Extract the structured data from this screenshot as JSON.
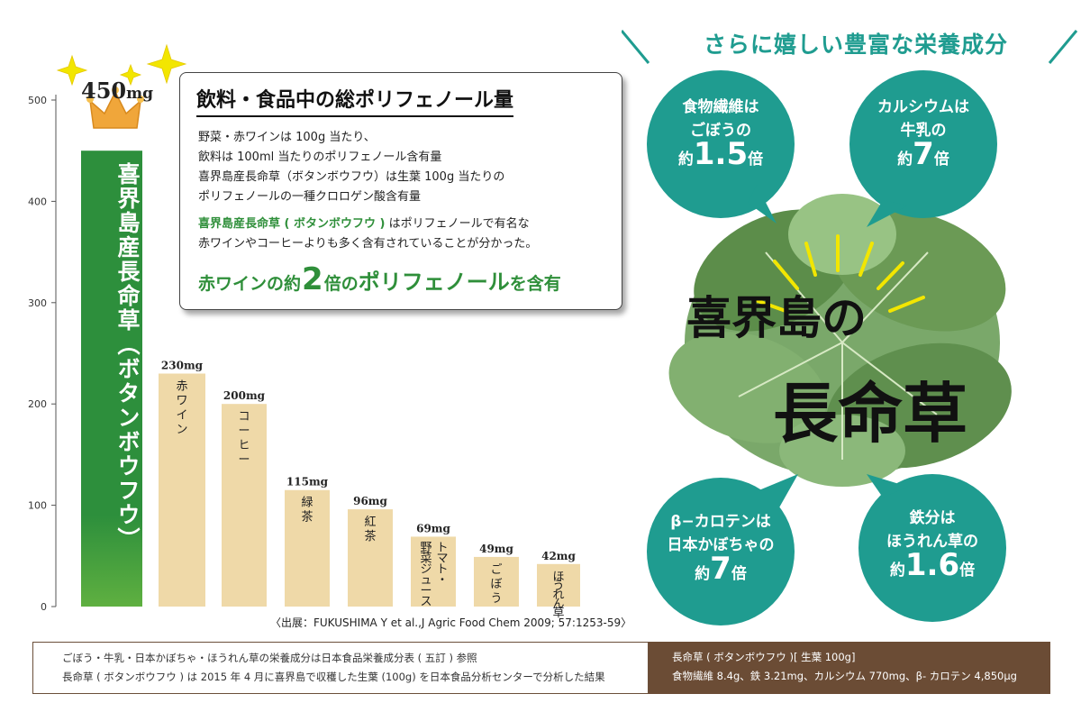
{
  "chart_data": {
    "type": "bar",
    "categories": [
      "喜界島産　長命草（ボタンボウフウ）",
      "赤ワイン",
      "コーヒー",
      "緑茶",
      "紅茶",
      "トマト・野菜ジュース",
      "ごぼう",
      "ほうれん草"
    ],
    "values": [
      450,
      230,
      200,
      115,
      96,
      69,
      49,
      42
    ],
    "value_labels": [
      "450mg",
      "230mg",
      "200mg",
      "115mg",
      "96mg",
      "69mg",
      "49mg",
      "42mg"
    ],
    "bar_names": [
      "",
      "赤ワイン",
      "コーヒー",
      "緑茶",
      "紅茶",
      "トマト・野菜ジュース",
      "ごぼう",
      "ほうれん草"
    ],
    "yticks": [
      0,
      100,
      200,
      300,
      400,
      500
    ],
    "ylim": [
      0,
      500
    ],
    "grid": false,
    "colors": {
      "hero": "#2d8f3c",
      "hero_top": "#5fb040",
      "others": "#efd9a8"
    }
  },
  "hero_bar": {
    "line1": "喜界島産",
    "line2": "長命草（ボタンボウフウ）",
    "peak_value": "450",
    "peak_unit": "mg"
  },
  "info_box": {
    "title": "飲料・食品中の総ポリフェノール量",
    "lines": [
      "野菜・赤ワインは 100g 当たり、",
      "飲料は 100ml 当たりのポリフェノール含有量",
      "喜界島産長命草（ボタンボウフウ）は生葉 100g 当たりの",
      "ポリフェノールの一種クロロゲン酸含有量"
    ],
    "note_green": "喜界島産長命草 ( ボタンボウフウ )",
    "note_rest1": " はポリフェノールで有名な",
    "note_line2": "赤ワインやコーヒーよりも多く含有されていることが分かった。",
    "highlight_pre": "赤ワインの約",
    "highlight_num": "2",
    "highlight_mid": "倍の",
    "highlight_key": "ポリフェノール",
    "highlight_post": "を含有"
  },
  "source": "〈出展：FUKUSHIMA Y et al.,J Agric Food Chem 2009; 57:1253-59〉",
  "footer": {
    "left_line1": "ごぼう・牛乳・日本かぼちゃ・ほうれん草の栄養成分は日本食品栄養成分表 ( 五訂 ) 参照",
    "left_line2": "長命草 ( ボタンボウフウ ) は 2015 年 4 月に喜界島で収穫した生葉 (100g) を日本食品分析センターで分析した結果",
    "right_line1": "長命草 ( ボタンボウフウ )[ 生葉 100g]",
    "right_line2": "食物繊維 8.4g、鉄 3.21mg、カルシウム 770mg、β- カロテン 4,850μg"
  },
  "right_panel": {
    "heading": "さらに嬉しい豊富な栄養成分",
    "plant_title_1": "喜界島の",
    "plant_title_2": "長命草",
    "bubbles": [
      {
        "l1": "食物繊維は",
        "l2": "ごぼうの",
        "pre": "約",
        "num": "1.5",
        "post": "倍"
      },
      {
        "l1": "カルシウムは",
        "l2": "牛乳の",
        "pre": "約",
        "num": "7",
        "post": "倍"
      },
      {
        "l1": "β−カロテンは",
        "l2": "日本かぼちゃの",
        "pre": "約",
        "num": "7",
        "post": "倍"
      },
      {
        "l1": "鉄分は",
        "l2": "ほうれん草の",
        "pre": "約",
        "num": "1.6",
        "post": "倍"
      }
    ],
    "colors": {
      "teal": "#1f9c90",
      "leaf": "#4f7f3c",
      "sparkle": "#f2e600"
    }
  }
}
